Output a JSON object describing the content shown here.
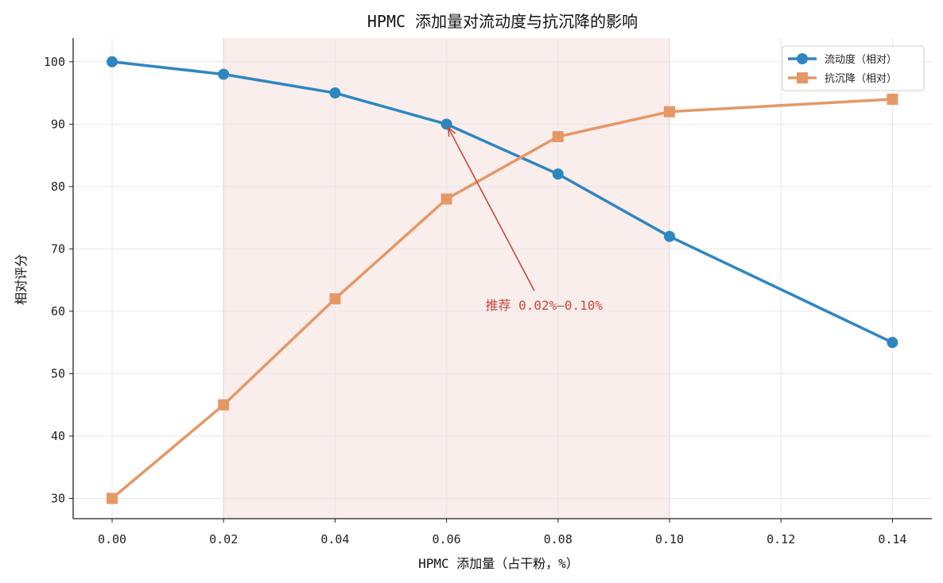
{
  "chart_data": {
    "type": "line",
    "title": "HPMC 添加量对流动度与抗沉降的影响",
    "xlabel": "HPMC 添加量（占干粉，%）",
    "ylabel": "相对评分",
    "xlim": [
      -0.007,
      0.147
    ],
    "ylim": [
      26.7,
      103.5
    ],
    "xticks": [
      0.0,
      0.02,
      0.04,
      0.06,
      0.08,
      0.1,
      0.12,
      0.14
    ],
    "xtick_labels": [
      "0.00",
      "0.02",
      "0.04",
      "0.06",
      "0.08",
      "0.10",
      "0.12",
      "0.14"
    ],
    "yticks": [
      30,
      40,
      50,
      60,
      70,
      80,
      90,
      100
    ],
    "ytick_labels": [
      "30",
      "40",
      "50",
      "60",
      "70",
      "80",
      "90",
      "100"
    ],
    "grid": true,
    "legend_position": "top-right",
    "shaded_region": {
      "x_from": 0.02,
      "x_to": 0.1,
      "color": "#f7e8e6"
    },
    "annotation": {
      "text": "推荐 0.02%–0.10%",
      "points_to": [
        0.06,
        90
      ],
      "text_at": [
        0.0775,
        60.6
      ],
      "color": "#c8473a"
    },
    "series": [
      {
        "name": "流动度（相对）",
        "marker": "circle",
        "color": "#2e86c1",
        "x": [
          0.0,
          0.02,
          0.04,
          0.06,
          0.08,
          0.1,
          0.14
        ],
        "y": [
          100,
          98,
          95,
          90,
          82,
          72,
          55
        ]
      },
      {
        "name": "抗沉降（相对）",
        "marker": "square",
        "color": "#e59866",
        "x": [
          0.0,
          0.02,
          0.04,
          0.06,
          0.08,
          0.1,
          0.14
        ],
        "y": [
          30,
          45,
          62,
          78,
          88,
          92,
          94
        ]
      }
    ]
  }
}
